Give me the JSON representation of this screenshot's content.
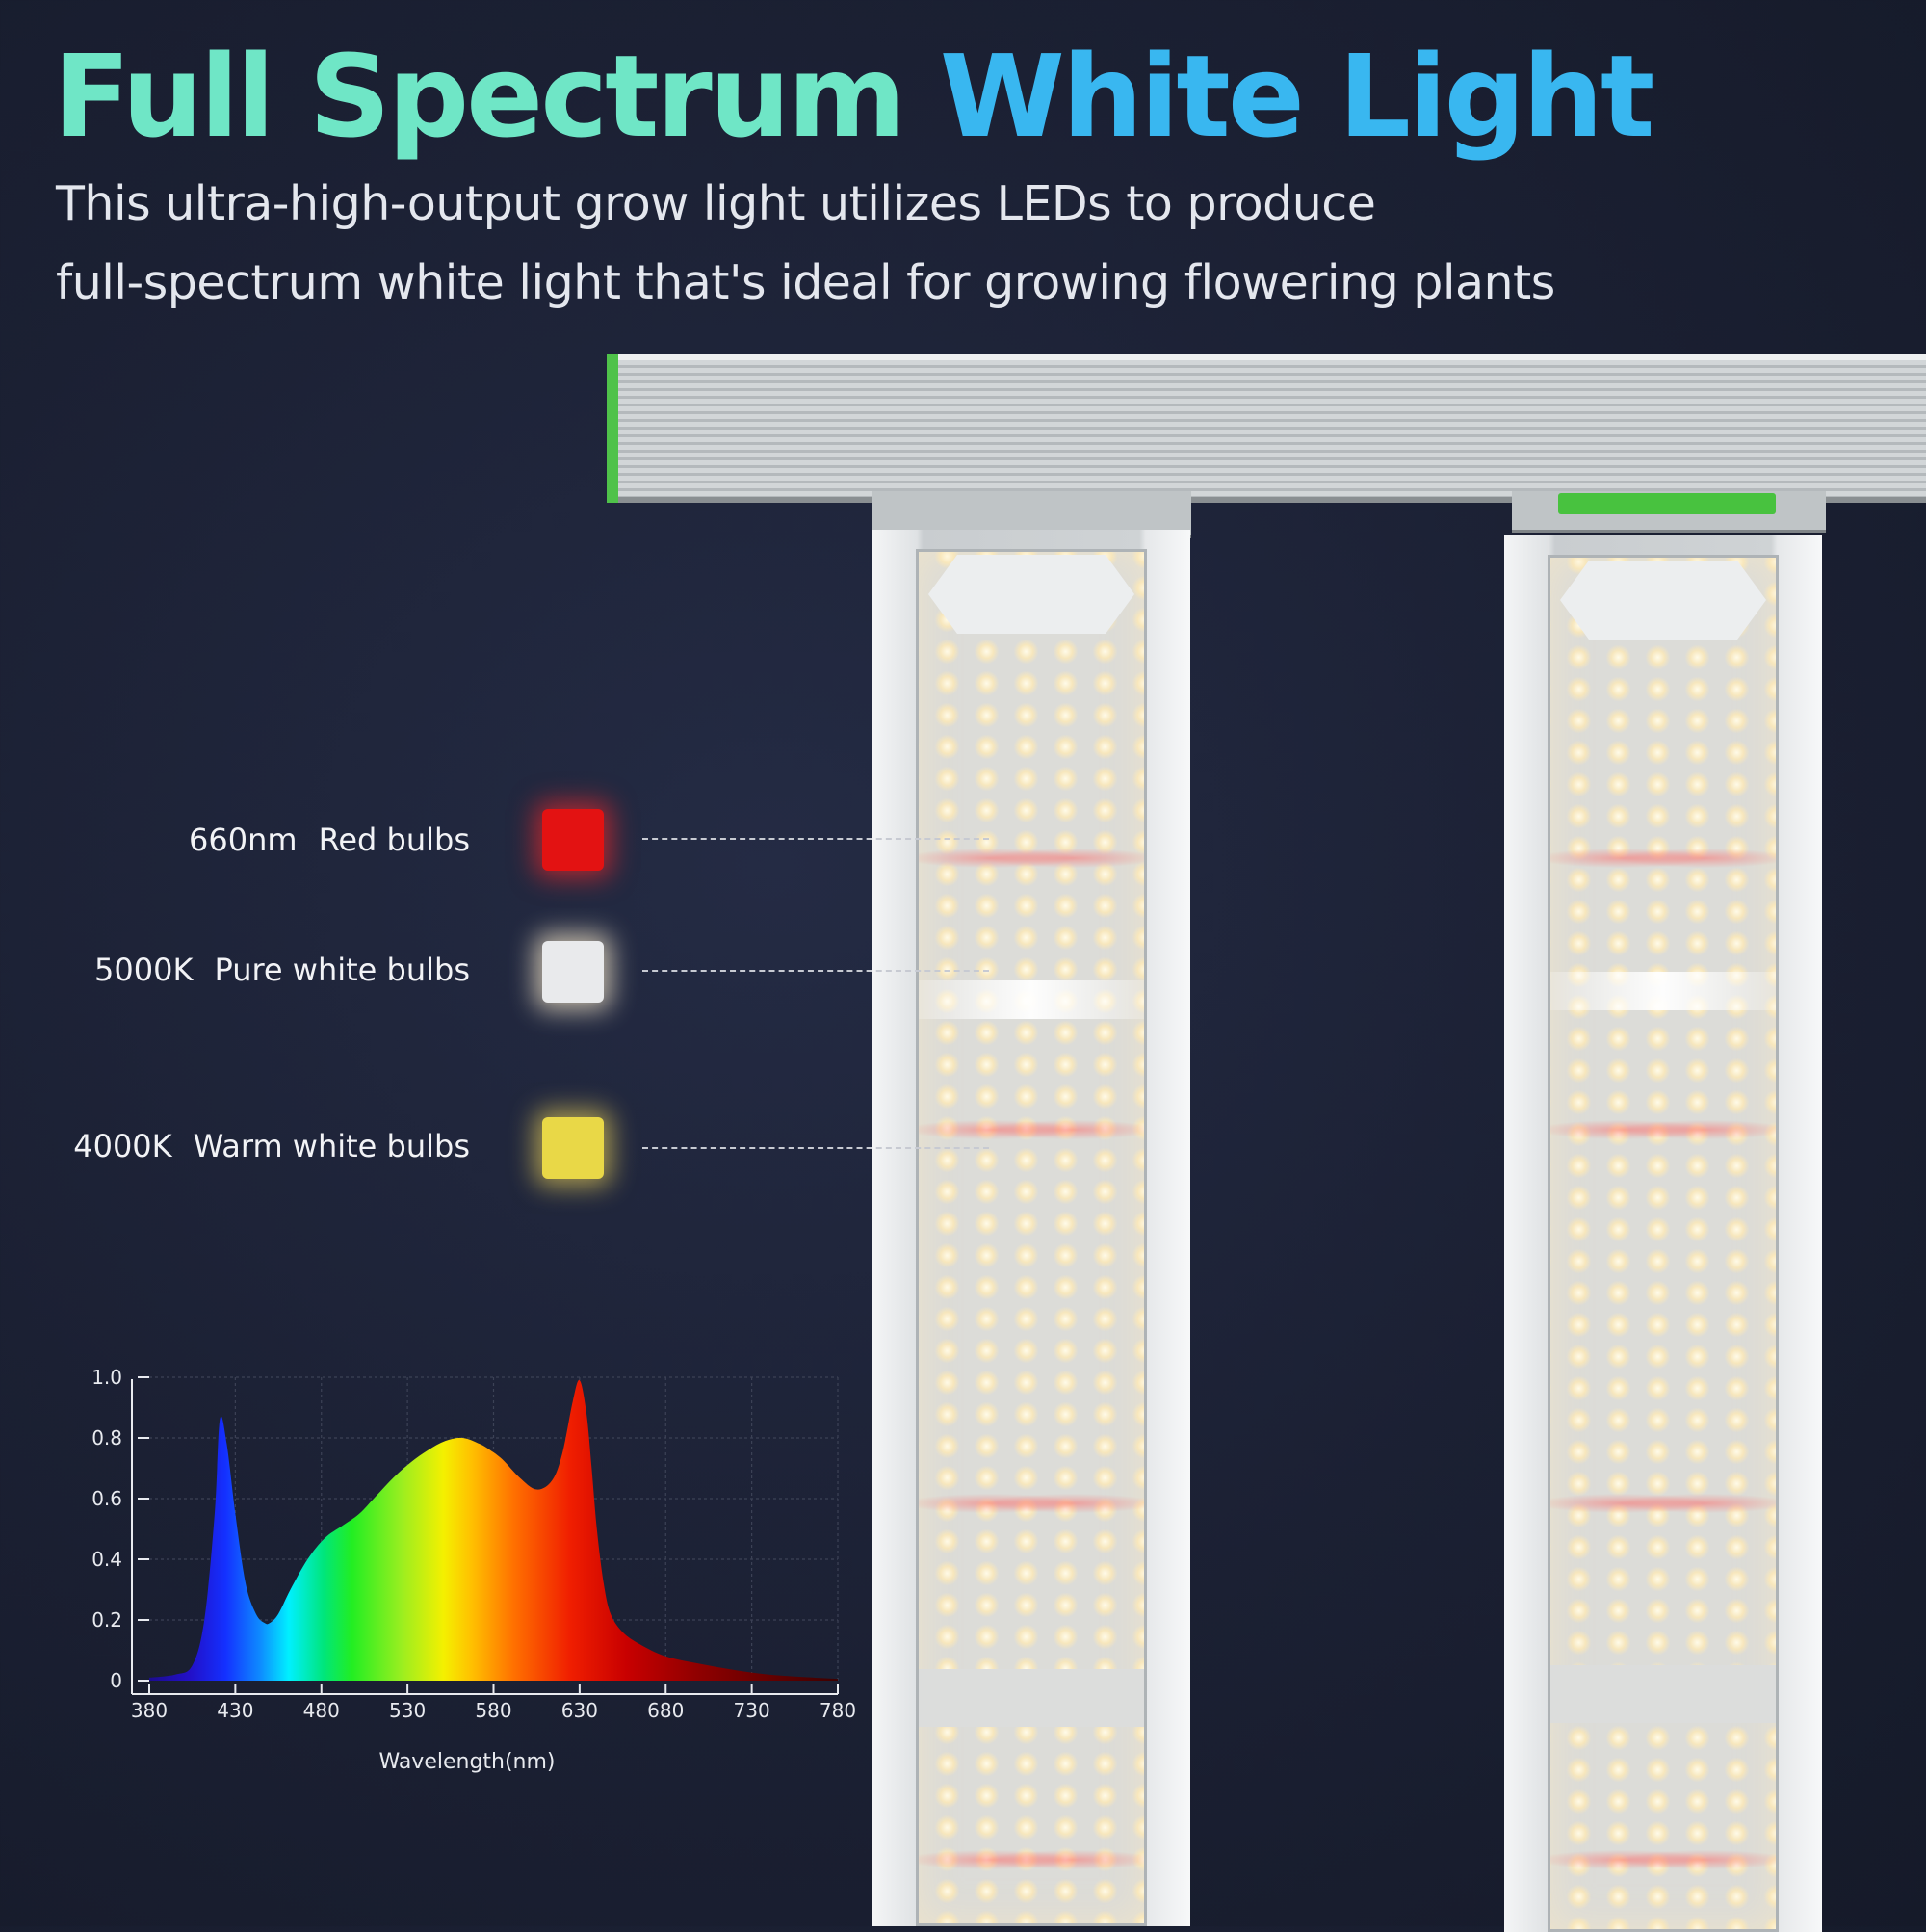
{
  "title": {
    "part1": "Full Spectrum",
    "part2": "White Light"
  },
  "subtitle": {
    "line1": "This ultra-high-output grow light utilizes LEDs to produce",
    "line2": "full-spectrum white light that's ideal for growing flowering plants"
  },
  "legend": [
    {
      "code": "660nm",
      "label": "Red bulbs",
      "color": "#e31212"
    },
    {
      "code": "5000K",
      "label": "Pure white bulbs",
      "color": "#e9eaec"
    },
    {
      "code": "4000K",
      "label": "Warm white bulbs",
      "color": "#e9d847"
    }
  ],
  "colors": {
    "title_green": "#6fe6c6",
    "title_blue": "#39b7f0",
    "fixture_accent": "#4fc24a"
  },
  "chart_data": {
    "type": "area",
    "xlabel": "Wavelength(nm)",
    "ylabel": "",
    "xlim": [
      380,
      780
    ],
    "ylim": [
      0,
      1.0
    ],
    "x_ticks": [
      "380",
      "430",
      "480",
      "530",
      "580",
      "630",
      "680",
      "730",
      "780"
    ],
    "y_ticks": [
      "0",
      "0.2",
      "0.4",
      "0.6",
      "0.8",
      "1.0"
    ],
    "grid": true,
    "x": [
      380,
      395,
      405,
      412,
      418,
      421,
      425,
      430,
      436,
      442,
      447,
      450,
      455,
      462,
      472,
      482,
      492,
      502,
      512,
      522,
      532,
      542,
      552,
      562,
      572,
      578,
      585,
      595,
      605,
      614,
      620,
      626,
      630,
      634,
      637,
      640,
      644,
      648,
      655,
      665,
      680,
      700,
      720,
      740,
      760,
      780
    ],
    "y": [
      0.01,
      0.02,
      0.05,
      0.2,
      0.55,
      0.86,
      0.78,
      0.55,
      0.32,
      0.22,
      0.19,
      0.19,
      0.22,
      0.3,
      0.4,
      0.47,
      0.51,
      0.55,
      0.61,
      0.67,
      0.72,
      0.76,
      0.79,
      0.8,
      0.78,
      0.76,
      0.73,
      0.67,
      0.63,
      0.66,
      0.75,
      0.92,
      0.99,
      0.88,
      0.7,
      0.5,
      0.32,
      0.22,
      0.16,
      0.12,
      0.08,
      0.055,
      0.035,
      0.02,
      0.012,
      0.006
    ]
  }
}
